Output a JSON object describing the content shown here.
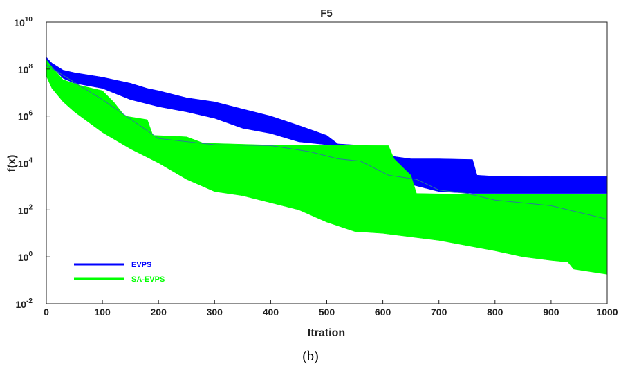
{
  "chart_data": {
    "type": "area",
    "title": "F5",
    "xlabel": "Itration",
    "ylabel": "f(x)",
    "xlim": [
      0,
      1000
    ],
    "ylim_log10": [
      -2,
      10
    ],
    "y_scale": "log",
    "grid": false,
    "legend_position": "bottom-left",
    "x_ticks": [
      "0",
      "100",
      "200",
      "300",
      "400",
      "500",
      "600",
      "700",
      "800",
      "900",
      "1000"
    ],
    "y_ticks": [
      {
        "base": "10",
        "exp": "10"
      },
      {
        "base": "10",
        "exp": "8"
      },
      {
        "base": "10",
        "exp": "6"
      },
      {
        "base": "10",
        "exp": "4"
      },
      {
        "base": "10",
        "exp": "2"
      },
      {
        "base": "10",
        "exp": "0"
      },
      {
        "base": "10",
        "exp": "-2"
      }
    ],
    "series": [
      {
        "name": "EVPS",
        "color": "#0000ff",
        "upper": [
          [
            0,
            320000000.0
          ],
          [
            10,
            180000000.0
          ],
          [
            30,
            90000000.0
          ],
          [
            50,
            70000000.0
          ],
          [
            100,
            45000000.0
          ],
          [
            150,
            25000000.0
          ],
          [
            180,
            15000000.0
          ],
          [
            200,
            12000000.0
          ],
          [
            250,
            6000000.0
          ],
          [
            300,
            4000000.0
          ],
          [
            350,
            2000000.0
          ],
          [
            400,
            1000000.0
          ],
          [
            450,
            400000.0
          ],
          [
            500,
            150000.0
          ],
          [
            520,
            65000.0
          ],
          [
            600,
            50000.0
          ],
          [
            612,
            20000.0
          ],
          [
            650,
            15000.0
          ],
          [
            700,
            15000.0
          ],
          [
            760,
            14000.0
          ],
          [
            768,
            3000.0
          ],
          [
            800,
            2700.0
          ],
          [
            900,
            2600.0
          ],
          [
            1000,
            2600.0
          ]
        ],
        "lower": [
          [
            0,
            250000000.0
          ],
          [
            10,
            120000000.0
          ],
          [
            30,
            40000000.0
          ],
          [
            50,
            25000000.0
          ],
          [
            100,
            15000000.0
          ],
          [
            150,
            5000000.0
          ],
          [
            200,
            2500000.0
          ],
          [
            250,
            1500000.0
          ],
          [
            300,
            800000.0
          ],
          [
            350,
            300000.0
          ],
          [
            400,
            180000.0
          ],
          [
            450,
            80000.0
          ],
          [
            500,
            60000.0
          ],
          [
            550,
            40000.0
          ],
          [
            600,
            20000.0
          ],
          [
            620,
            5000.0
          ],
          [
            650,
            1200.0
          ],
          [
            700,
            600.0
          ],
          [
            760,
            500.0
          ],
          [
            800,
            500.0
          ],
          [
            900,
            500.0
          ],
          [
            1000,
            500.0
          ]
        ]
      },
      {
        "name": "SA-EVPS",
        "color": "#00ff00",
        "upper": [
          [
            0,
            250000000.0
          ],
          [
            10,
            120000000.0
          ],
          [
            30,
            35000000.0
          ],
          [
            60,
            20000000.0
          ],
          [
            100,
            12000000.0
          ],
          [
            120,
            4000000.0
          ],
          [
            140,
            1000000.0
          ],
          [
            180,
            700000.0
          ],
          [
            190,
            150000.0
          ],
          [
            250,
            130000.0
          ],
          [
            280,
            70000.0
          ],
          [
            400,
            58000.0
          ],
          [
            500,
            56000.0
          ],
          [
            610,
            55000.0
          ],
          [
            620,
            15000.0
          ],
          [
            650,
            3000.0
          ],
          [
            660,
            500.0
          ],
          [
            700,
            480.0
          ],
          [
            800,
            460.0
          ],
          [
            900,
            460.0
          ],
          [
            1000,
            450.0
          ]
        ],
        "lower": [
          [
            0,
            50000000.0
          ],
          [
            10,
            15000000.0
          ],
          [
            30,
            4000000.0
          ],
          [
            50,
            1500000.0
          ],
          [
            100,
            200000.0
          ],
          [
            150,
            40000.0
          ],
          [
            200,
            10000.0
          ],
          [
            250,
            2000.0
          ],
          [
            300,
            600.0
          ],
          [
            350,
            400.0
          ],
          [
            400,
            200.0
          ],
          [
            450,
            100.0
          ],
          [
            500,
            30.0
          ],
          [
            550,
            12.0
          ],
          [
            600,
            10.0
          ],
          [
            700,
            5.0
          ],
          [
            800,
            1.8
          ],
          [
            850,
            1.0
          ],
          [
            900,
            0.7
          ],
          [
            930,
            0.6
          ],
          [
            940,
            0.3
          ],
          [
            1000,
            0.18
          ]
        ],
        "mean": [
          [
            0,
            150000000.0
          ],
          [
            100,
            5000000.0
          ],
          [
            200,
            110000.0
          ],
          [
            300,
            60000.0
          ],
          [
            400,
            55000.0
          ],
          [
            470,
            30000.0
          ],
          [
            520,
            15000.0
          ],
          [
            560,
            12000.0
          ],
          [
            610,
            3000.0
          ],
          [
            660,
            2000.0
          ],
          [
            700,
            700.0
          ],
          [
            750,
            500.0
          ],
          [
            800,
            260.0
          ],
          [
            900,
            150.0
          ],
          [
            1000,
            40.0
          ]
        ]
      }
    ]
  },
  "caption": "(b)"
}
